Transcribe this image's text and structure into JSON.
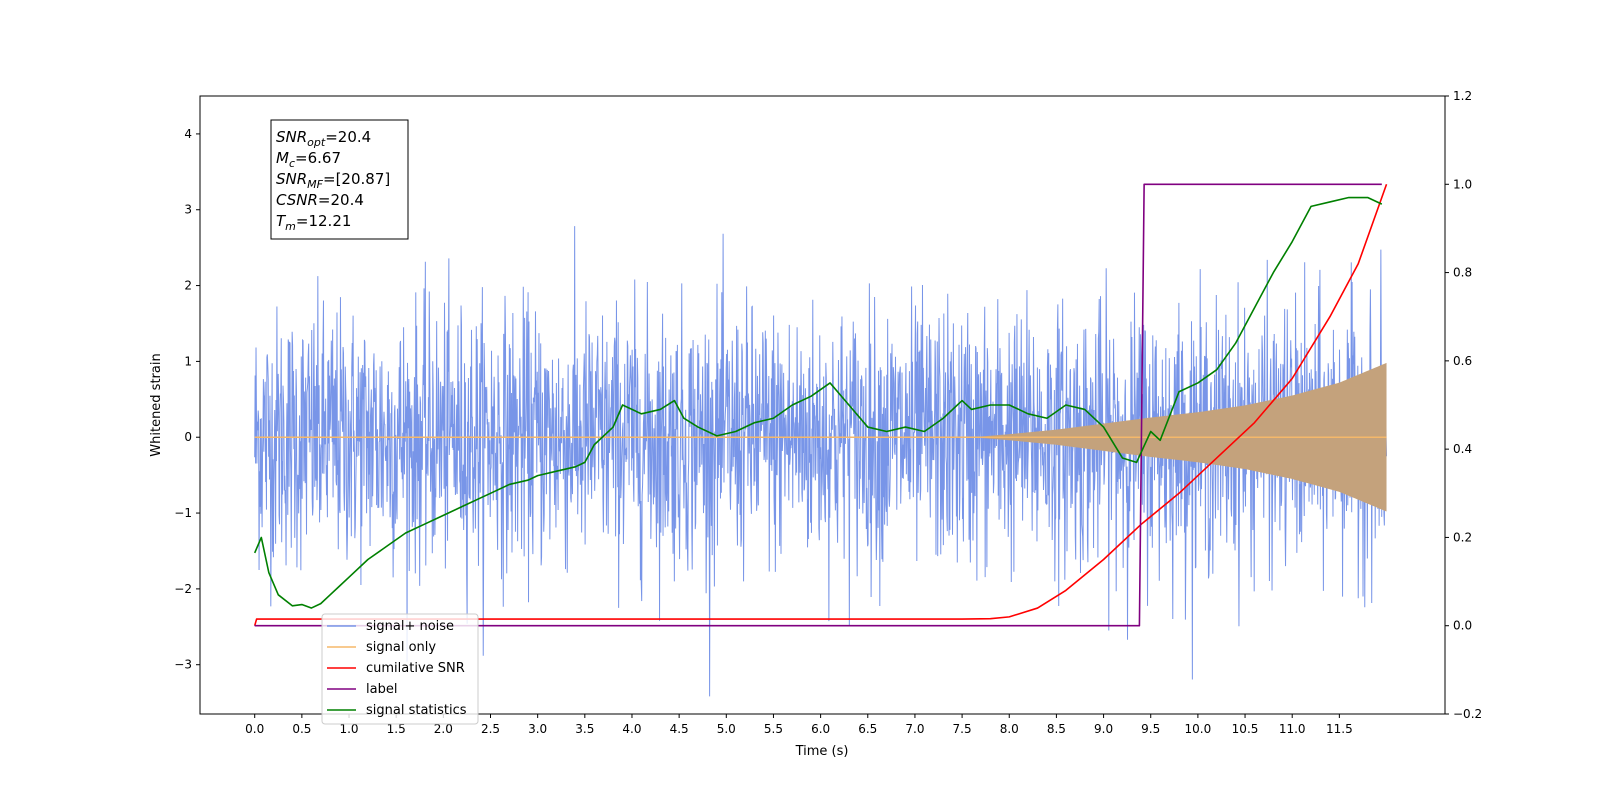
{
  "chart_data": {
    "type": "line",
    "xlabel": "Time (s)",
    "ylabel_left": "Whitened strain",
    "ylabel_right": "",
    "xlim": [
      -0.58,
      12.62
    ],
    "ylim_left": [
      -3.65,
      4.5
    ],
    "ylim_right": [
      -0.2,
      1.2
    ],
    "x_ticks": [
      0.0,
      0.5,
      1.0,
      1.5,
      2.0,
      2.5,
      3.0,
      3.5,
      4.0,
      4.5,
      5.0,
      5.5,
      6.0,
      6.5,
      7.0,
      7.5,
      8.0,
      8.5,
      9.0,
      9.5,
      10.0,
      10.5,
      11.0,
      11.5
    ],
    "x_tick_labels": [
      "0.0",
      "0.5",
      "1.0",
      "1.5",
      "2.0",
      "2.5",
      "3.0",
      "3.5",
      "4.0",
      "4.5",
      "5.0",
      "5.5",
      "6.0",
      "6.5",
      "7.0",
      "7.5",
      "8.0",
      "8.5",
      "9.0",
      "9.5",
      "10.0",
      "10.5",
      "11.0",
      "11.5"
    ],
    "y_ticks_left": [
      -3,
      -2,
      -1,
      0,
      1,
      2,
      3,
      4
    ],
    "y_tick_labels_left": [
      "−3",
      "−2",
      "−1",
      "0",
      "1",
      "2",
      "3",
      "4"
    ],
    "y_ticks_right": [
      -0.2,
      0.0,
      0.2,
      0.4,
      0.6,
      0.8,
      1.0,
      1.2
    ],
    "y_tick_labels_right": [
      "−0.2",
      "0.0",
      "0.2",
      "0.4",
      "0.6",
      "0.8",
      "1.0",
      "1.2"
    ],
    "grid": false,
    "legend_position": "lower-left",
    "annotation_box": {
      "lines": [
        {
          "main": "SNR",
          "sub": "opt",
          "value": "=20.4"
        },
        {
          "main": "M",
          "sub": "c",
          "value": "=6.67"
        },
        {
          "main": "SNR",
          "sub": "MF",
          "value": "=[20.87]"
        },
        {
          "main": "CSNR",
          "sub": "",
          "value": "=20.4"
        },
        {
          "main": "T",
          "sub": "m",
          "value": "=12.21"
        }
      ]
    },
    "series": [
      {
        "name": "signal+ noise",
        "axis": "left",
        "color": "#7895e8",
        "style": "noise-band",
        "x_range": [
          0.0,
          12.0
        ],
        "std": 0.85,
        "max_abs": 4.1
      },
      {
        "name": "signal only",
        "axis": "left",
        "color": "#c4a27c",
        "style": "chirp-envelope",
        "x": [
          0.0,
          7.6,
          8.0,
          8.5,
          9.0,
          9.5,
          10.0,
          10.5,
          11.0,
          11.5,
          12.0
        ],
        "amplitude": [
          0.0,
          0.0,
          0.04,
          0.1,
          0.18,
          0.26,
          0.33,
          0.42,
          0.55,
          0.72,
          0.98
        ]
      },
      {
        "name": "cumilative SNR",
        "axis": "right",
        "color": "#ff0000",
        "x": [
          0.0,
          0.02,
          7.5,
          7.8,
          8.0,
          8.3,
          8.6,
          9.0,
          9.4,
          9.8,
          10.2,
          10.6,
          11.0,
          11.4,
          11.7,
          12.0
        ],
        "values": [
          0.0,
          0.015,
          0.015,
          0.016,
          0.02,
          0.04,
          0.08,
          0.15,
          0.23,
          0.3,
          0.38,
          0.46,
          0.56,
          0.7,
          0.82,
          1.0
        ]
      },
      {
        "name": "label",
        "axis": "right",
        "color": "#800080",
        "x": [
          0.0,
          9.38,
          9.43,
          11.95
        ],
        "values": [
          0.0,
          0.0,
          1.0,
          1.0
        ]
      },
      {
        "name": "signal statistics",
        "axis": "right",
        "color": "#008000",
        "x": [
          0.0,
          0.07,
          0.15,
          0.25,
          0.4,
          0.5,
          0.6,
          0.7,
          0.8,
          0.9,
          1.0,
          1.2,
          1.4,
          1.6,
          1.8,
          2.0,
          2.2,
          2.4,
          2.5,
          2.7,
          2.9,
          3.0,
          3.2,
          3.4,
          3.5,
          3.6,
          3.8,
          3.9,
          4.1,
          4.3,
          4.45,
          4.55,
          4.7,
          4.9,
          5.1,
          5.3,
          5.5,
          5.7,
          5.9,
          6.1,
          6.3,
          6.5,
          6.7,
          6.9,
          7.1,
          7.3,
          7.5,
          7.6,
          7.8,
          8.0,
          8.2,
          8.4,
          8.6,
          8.8,
          9.0,
          9.2,
          9.35,
          9.5,
          9.6,
          9.8,
          10.0,
          10.2,
          10.4,
          10.6,
          10.8,
          11.0,
          11.2,
          11.4,
          11.6,
          11.8,
          11.95
        ],
        "values": [
          0.165,
          0.2,
          0.12,
          0.07,
          0.045,
          0.048,
          0.04,
          0.05,
          0.07,
          0.09,
          0.11,
          0.15,
          0.18,
          0.21,
          0.23,
          0.25,
          0.27,
          0.29,
          0.3,
          0.32,
          0.33,
          0.34,
          0.35,
          0.36,
          0.37,
          0.41,
          0.45,
          0.5,
          0.48,
          0.49,
          0.51,
          0.47,
          0.45,
          0.43,
          0.44,
          0.46,
          0.47,
          0.5,
          0.52,
          0.55,
          0.5,
          0.45,
          0.44,
          0.45,
          0.44,
          0.47,
          0.51,
          0.49,
          0.5,
          0.5,
          0.48,
          0.47,
          0.5,
          0.49,
          0.45,
          0.38,
          0.37,
          0.44,
          0.42,
          0.53,
          0.55,
          0.58,
          0.64,
          0.72,
          0.8,
          0.87,
          0.95,
          0.96,
          0.97,
          0.97,
          0.955
        ]
      }
    ]
  }
}
